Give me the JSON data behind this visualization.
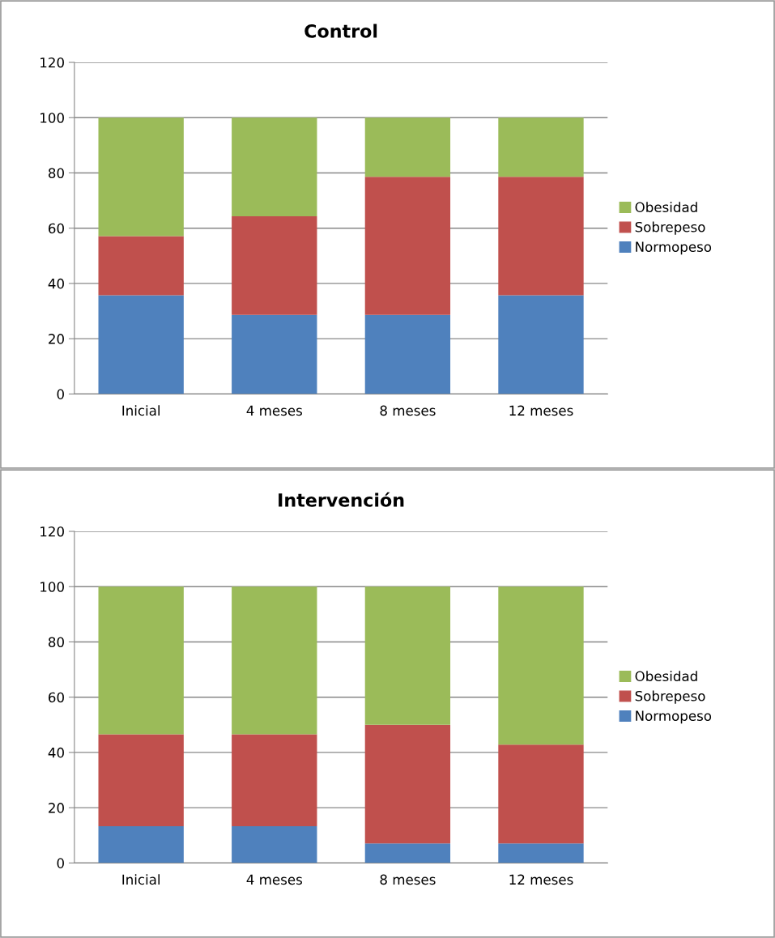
{
  "chart_data": [
    {
      "type": "bar",
      "title": "Control",
      "stacked": true,
      "categories": [
        "Inicial",
        "4 meses",
        "8 meses",
        "12 meses"
      ],
      "series": [
        {
          "name": "Normopeso",
          "color": "#4f81bd",
          "values": [
            35.7,
            28.6,
            28.6,
            35.7
          ]
        },
        {
          "name": "Sobrepeso",
          "color": "#c0504d",
          "values": [
            21.4,
            35.7,
            50.0,
            42.9
          ]
        },
        {
          "name": "Obesidad",
          "color": "#9bbb59",
          "values": [
            42.9,
            35.7,
            21.4,
            21.4
          ]
        }
      ],
      "ylim": [
        0,
        120
      ],
      "yticks": [
        0,
        20,
        40,
        60,
        80,
        100,
        120
      ],
      "grid": "y",
      "legend": "right"
    },
    {
      "type": "bar",
      "title": "Intervención",
      "stacked": true,
      "categories": [
        "Inicial",
        "4 meses",
        "8 meses",
        "12 meses"
      ],
      "series": [
        {
          "name": "Normopeso",
          "color": "#4f81bd",
          "values": [
            13.3,
            13.3,
            7.1,
            7.1
          ]
        },
        {
          "name": "Sobrepeso",
          "color": "#c0504d",
          "values": [
            33.3,
            33.3,
            42.9,
            35.7
          ]
        },
        {
          "name": "Obesidad",
          "color": "#9bbb59",
          "values": [
            53.4,
            53.4,
            50.0,
            57.2
          ]
        }
      ],
      "ylim": [
        0,
        120
      ],
      "yticks": [
        0,
        20,
        40,
        60,
        80,
        100,
        120
      ],
      "grid": "y",
      "legend": "right"
    }
  ]
}
